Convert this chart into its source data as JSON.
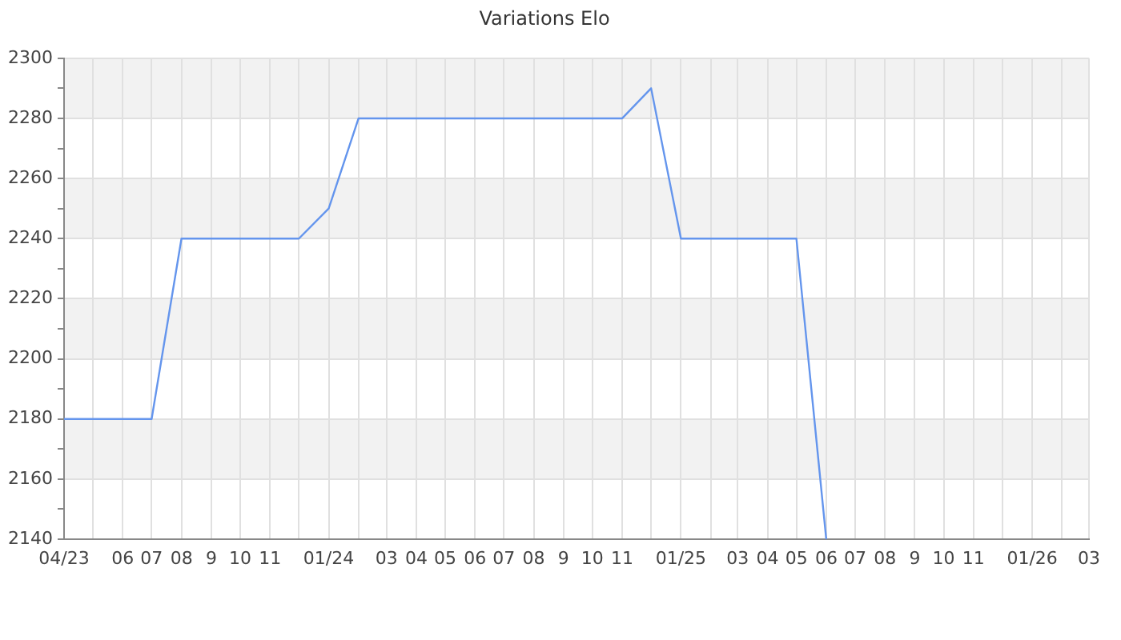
{
  "chart_data": {
    "type": "line",
    "title": "Variations Elo",
    "x": [
      "2023-04",
      "2023-05",
      "2023-06",
      "2023-07",
      "2023-08",
      "2023-09",
      "2023-10",
      "2023-11",
      "2023-12",
      "2024-01",
      "2024-02",
      "2024-03",
      "2024-04",
      "2024-05",
      "2024-06",
      "2024-07",
      "2024-08",
      "2024-09",
      "2024-10",
      "2024-11",
      "2024-12",
      "2025-01",
      "2025-02",
      "2025-03",
      "2025-04",
      "2025-05",
      "2025-06"
    ],
    "values": [
      2180,
      2180,
      2180,
      2180,
      2240,
      2240,
      2240,
      2240,
      2240,
      2250,
      2280,
      2280,
      2280,
      2280,
      2280,
      2280,
      2280,
      2280,
      2280,
      2280,
      2290,
      2240,
      2240,
      2240,
      2240,
      2240,
      2140
    ],
    "color": "#6495ed",
    "marker": "none",
    "xlim": [
      "2023-04",
      "2026-03"
    ],
    "xticks": [
      {
        "value": "2023-04",
        "label": "04/23"
      },
      {
        "value": "2023-05",
        "label": null
      },
      {
        "value": "2023-06",
        "label": "06"
      },
      {
        "value": "2023-07",
        "label": "07"
      },
      {
        "value": "2023-08",
        "label": "08"
      },
      {
        "value": "2023-09",
        "label": "9"
      },
      {
        "value": "2023-10",
        "label": "10"
      },
      {
        "value": "2023-11",
        "label": "11"
      },
      {
        "value": "2023-12",
        "label": null
      },
      {
        "value": "2024-01",
        "label": "01/24"
      },
      {
        "value": "2024-02",
        "label": null
      },
      {
        "value": "2024-03",
        "label": "03"
      },
      {
        "value": "2024-04",
        "label": "04"
      },
      {
        "value": "2024-05",
        "label": "05"
      },
      {
        "value": "2024-06",
        "label": "06"
      },
      {
        "value": "2024-07",
        "label": "07"
      },
      {
        "value": "2024-08",
        "label": "08"
      },
      {
        "value": "2024-09",
        "label": "9"
      },
      {
        "value": "2024-10",
        "label": "10"
      },
      {
        "value": "2024-11",
        "label": "11"
      },
      {
        "value": "2024-12",
        "label": null
      },
      {
        "value": "2025-01",
        "label": "01/25"
      },
      {
        "value": "2025-02",
        "label": null
      },
      {
        "value": "2025-03",
        "label": "03"
      },
      {
        "value": "2025-04",
        "label": "04"
      },
      {
        "value": "2025-05",
        "label": "05"
      },
      {
        "value": "2025-06",
        "label": "06"
      },
      {
        "value": "2025-07",
        "label": "07"
      },
      {
        "value": "2025-08",
        "label": "08"
      },
      {
        "value": "2025-09",
        "label": "9"
      },
      {
        "value": "2025-10",
        "label": "10"
      },
      {
        "value": "2025-11",
        "label": "11"
      },
      {
        "value": "2025-12",
        "label": null
      },
      {
        "value": "2026-01",
        "label": "01/26"
      },
      {
        "value": "2026-02",
        "label": null
      },
      {
        "value": "2026-03",
        "label": "03"
      }
    ],
    "ylim": [
      2140,
      2300
    ],
    "yticks": [
      2140,
      {
        "value": 2150,
        "label": null
      },
      2160,
      {
        "value": 2170,
        "label": null
      },
      2180,
      {
        "value": 2190,
        "label": null
      },
      2200,
      {
        "value": 2210,
        "label": null
      },
      2220,
      {
        "value": 2230,
        "label": null
      },
      2240,
      {
        "value": 2250,
        "label": null
      },
      2260,
      {
        "value": 2270,
        "label": null
      },
      2280,
      {
        "value": 2290,
        "label": null
      },
      2300
    ],
    "grid": true,
    "bands": [
      {
        "axis": "y",
        "from": 2160,
        "to": 2180,
        "color": "#f2f2f2"
      },
      {
        "axis": "y",
        "from": 2200,
        "to": 2220,
        "color": "#f2f2f2"
      },
      {
        "axis": "y",
        "from": 2240,
        "to": 2260,
        "color": "#f2f2f2"
      },
      {
        "axis": "y",
        "from": 2280,
        "to": 2300,
        "color": "#f2f2f2"
      }
    ]
  }
}
